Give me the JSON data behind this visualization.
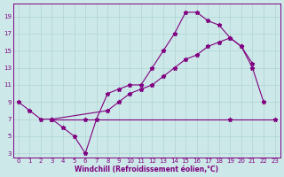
{
  "xlabel": "Windchill (Refroidissement éolien,°C)",
  "bg_color": "#cce8e8",
  "line_color": "#800080",
  "grid_color": "#b0d4d4",
  "axis_color": "#800080",
  "text_color": "#800080",
  "xlim": [
    -0.5,
    23.5
  ],
  "ylim": [
    2.5,
    20.5
  ],
  "xticks": [
    0,
    1,
    2,
    3,
    4,
    5,
    6,
    7,
    8,
    9,
    10,
    11,
    12,
    13,
    14,
    15,
    16,
    17,
    18,
    19,
    20,
    21,
    22,
    23
  ],
  "yticks": [
    3,
    5,
    7,
    9,
    11,
    13,
    15,
    17,
    19
  ],
  "series": [
    {
      "x": [
        0,
        1,
        2,
        3,
        4,
        5,
        6,
        7,
        8,
        9,
        10,
        11,
        12,
        13,
        14,
        15,
        16,
        17,
        18,
        19,
        20,
        21,
        22
      ],
      "y": [
        9,
        8,
        7,
        7,
        6,
        5,
        3,
        7,
        10,
        10.5,
        11,
        11,
        13,
        15,
        17,
        19.5,
        19.5,
        18.5,
        18,
        16.5,
        15.5,
        13,
        9
      ]
    },
    {
      "x": [
        3,
        6,
        19,
        23
      ],
      "y": [
        7,
        7,
        7,
        7
      ]
    },
    {
      "x": [
        3,
        8,
        9,
        10,
        11,
        12,
        13,
        14,
        15,
        16,
        17,
        18,
        19,
        20,
        21
      ],
      "y": [
        7,
        8,
        9,
        10,
        10.5,
        11,
        12,
        13,
        14,
        14.5,
        15.5,
        16,
        16.5,
        15.5,
        13.5
      ]
    }
  ]
}
